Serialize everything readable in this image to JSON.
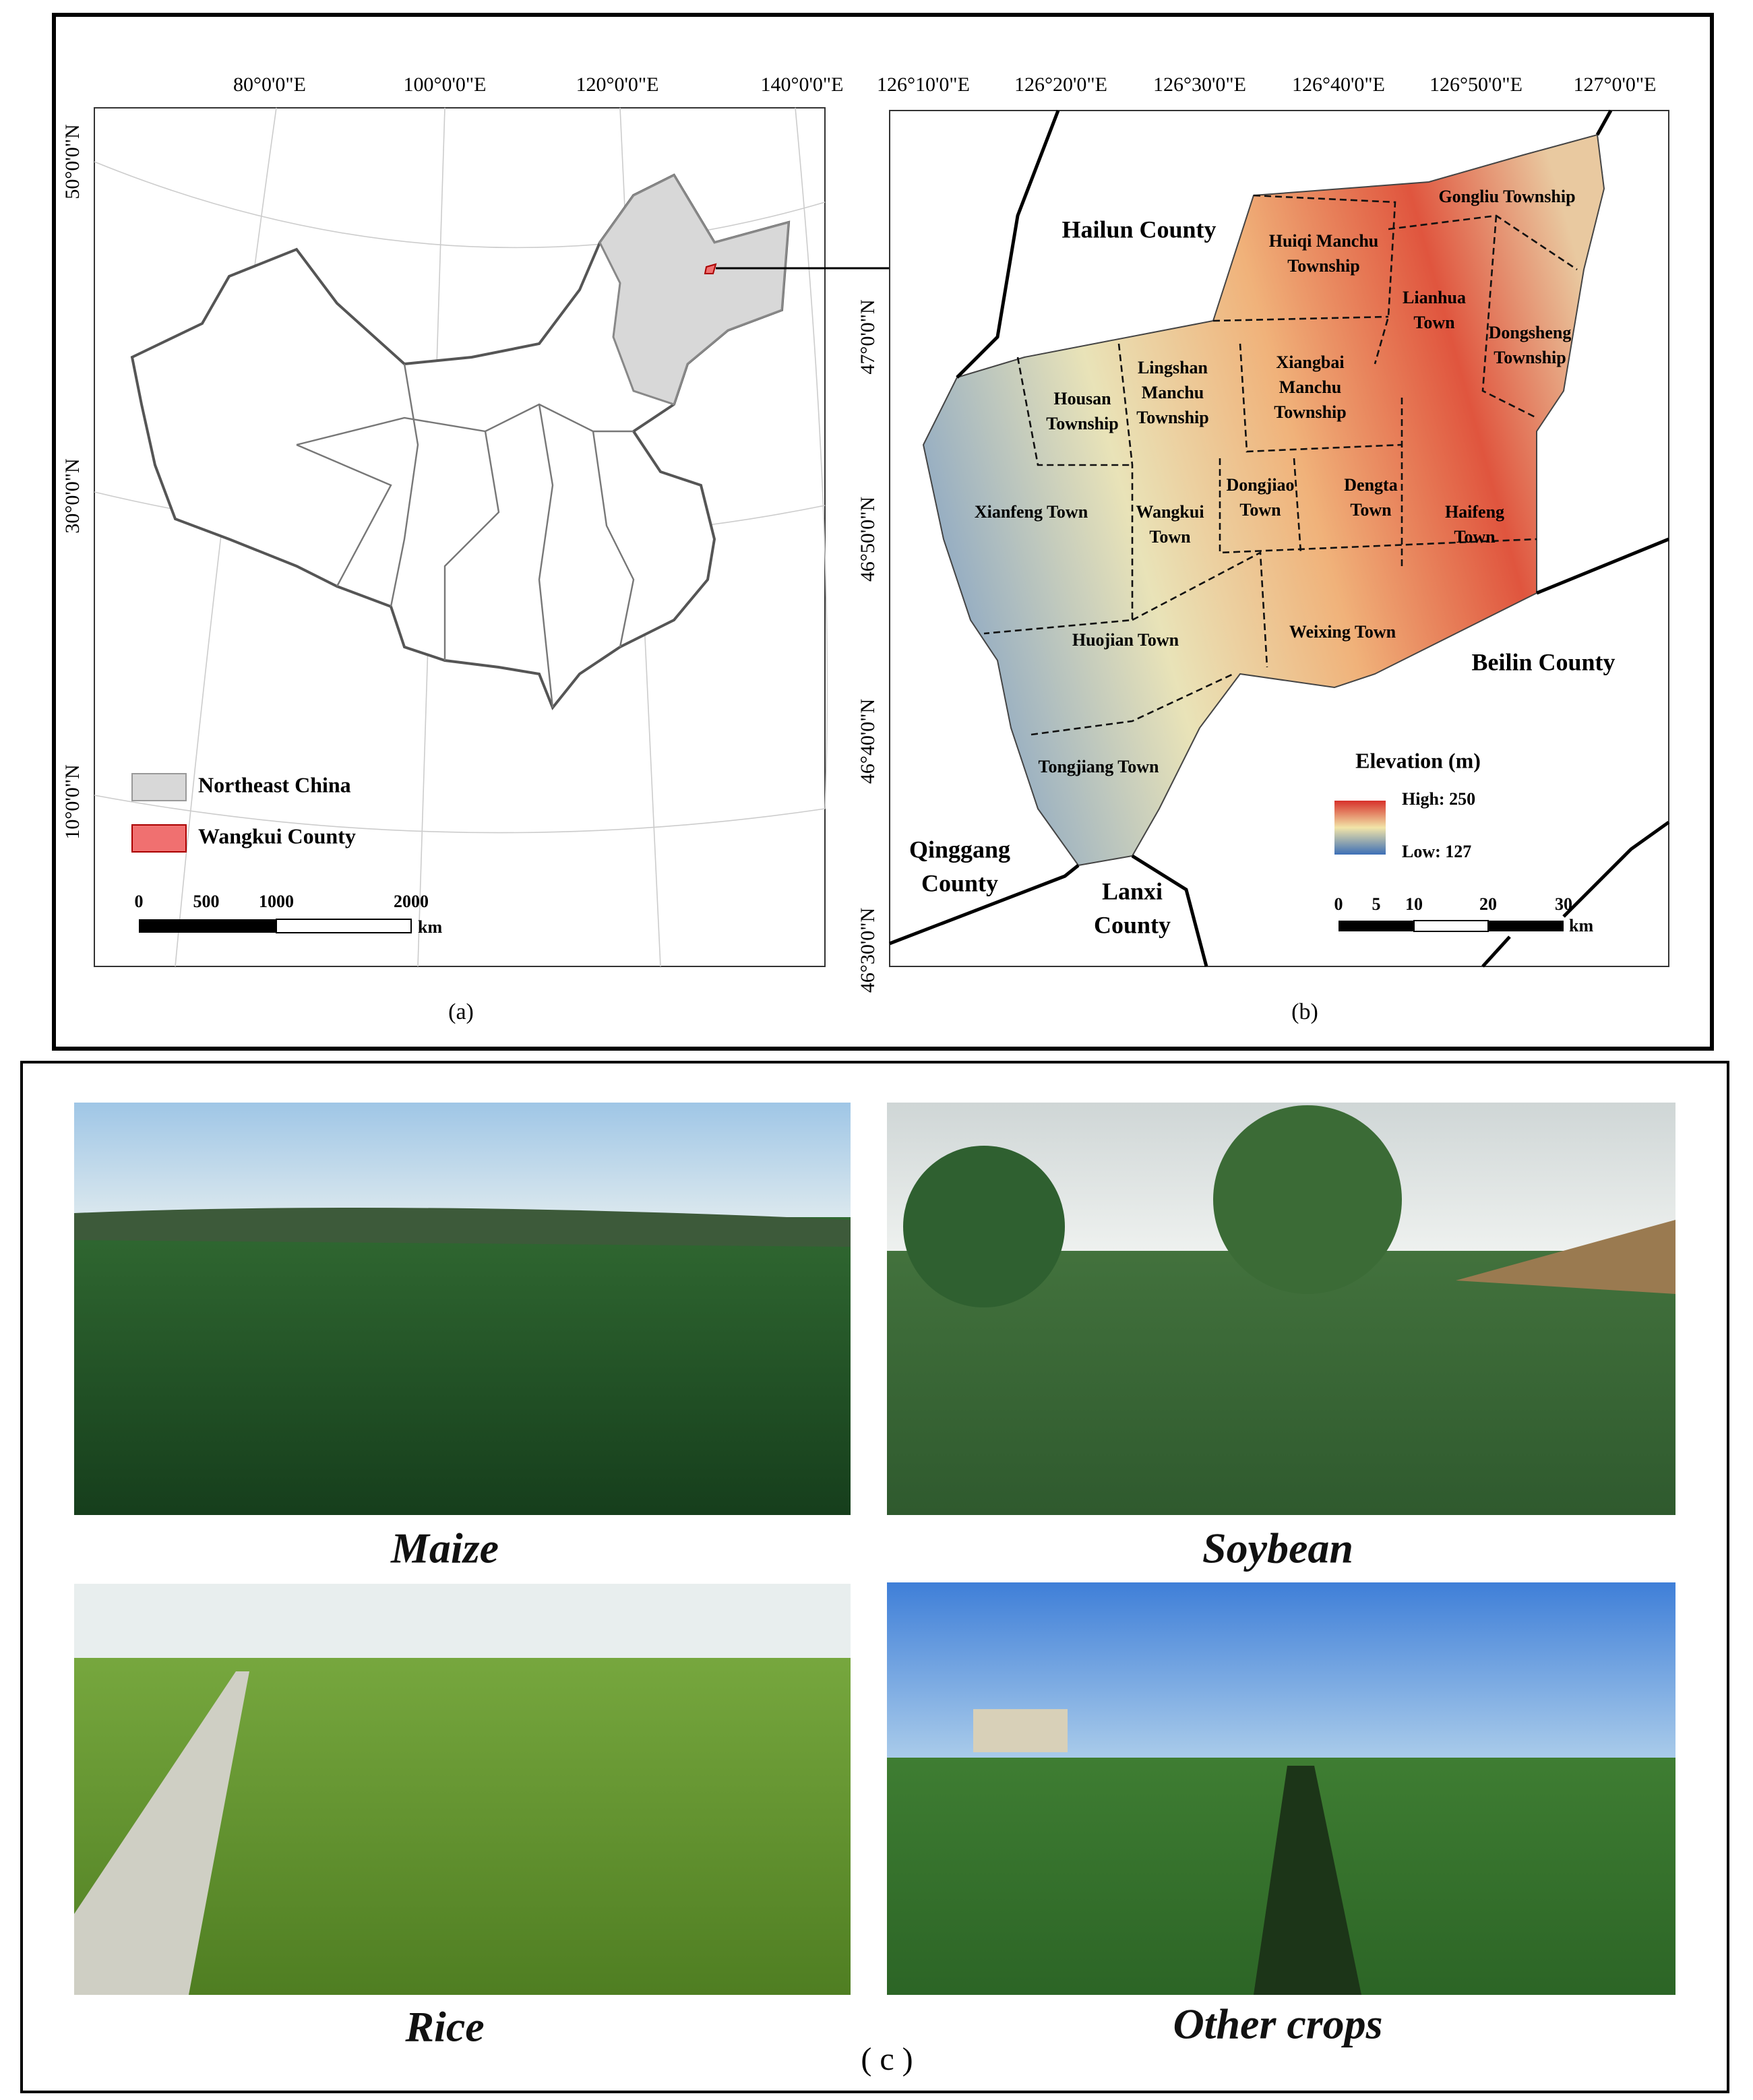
{
  "panel_a": {
    "label": "(a)",
    "lon_labels": [
      "80°0'0\"E",
      "100°0'0\"E",
      "120°0'0\"E",
      "140°0'0\"E"
    ],
    "lat_labels": [
      "50°0'0\"N",
      "30°0'0\"N",
      "10°0'0\"N"
    ],
    "legend": [
      "Northeast China",
      "Wangkui County"
    ],
    "scale": {
      "ticks": [
        "0",
        "500",
        "1000",
        "2000"
      ],
      "unit": "km"
    }
  },
  "panel_b": {
    "label": "(b)",
    "lon_labels": [
      "126°10'0\"E",
      "126°20'0\"E",
      "126°30'0\"E",
      "126°40'0\"E",
      "126°50'0\"E",
      "127°0'0\"E"
    ],
    "lat_labels": [
      "47°0'0\"N",
      "46°50'0\"N",
      "46°40'0\"N",
      "46°30'0\"N"
    ],
    "counties": [
      {
        "lines": [
          "Hailun County"
        ]
      },
      {
        "lines": [
          "Beilin County"
        ]
      },
      {
        "lines": [
          "Qinggang",
          "County"
        ]
      },
      {
        "lines": [
          "Lanxi",
          "County"
        ]
      }
    ],
    "towns": [
      {
        "lines": [
          "Gongliu Township"
        ]
      },
      {
        "lines": [
          "Huiqi Manchu",
          "Township"
        ]
      },
      {
        "lines": [
          "Lianhua",
          "Town"
        ]
      },
      {
        "lines": [
          "Dongsheng",
          "Township"
        ]
      },
      {
        "lines": [
          "Lingshan",
          "Manchu",
          "Township"
        ]
      },
      {
        "lines": [
          "Xiangbai",
          "Manchu",
          "Township"
        ]
      },
      {
        "lines": [
          "Housan",
          "Township"
        ]
      },
      {
        "lines": [
          "Dongjiao",
          "Town"
        ]
      },
      {
        "lines": [
          "Dengta",
          "Town"
        ]
      },
      {
        "lines": [
          "Haifeng",
          "Town"
        ]
      },
      {
        "lines": [
          "Xianfeng Town"
        ]
      },
      {
        "lines": [
          "Wangkui",
          "Town"
        ]
      },
      {
        "lines": [
          "Huojian Town"
        ]
      },
      {
        "lines": [
          "Weixing Town"
        ]
      },
      {
        "lines": [
          "Tongjiang Town"
        ]
      }
    ],
    "elevation": {
      "title": "Elevation (m)",
      "high": "High: 250",
      "low": "Low: 127"
    },
    "scale": {
      "ticks": [
        "0",
        "5",
        "10",
        "20",
        "30"
      ],
      "unit": "km"
    }
  },
  "panel_c": {
    "label": "( c )",
    "photos": [
      "Maize",
      "Soybean",
      "Rice",
      "Other crops"
    ]
  }
}
